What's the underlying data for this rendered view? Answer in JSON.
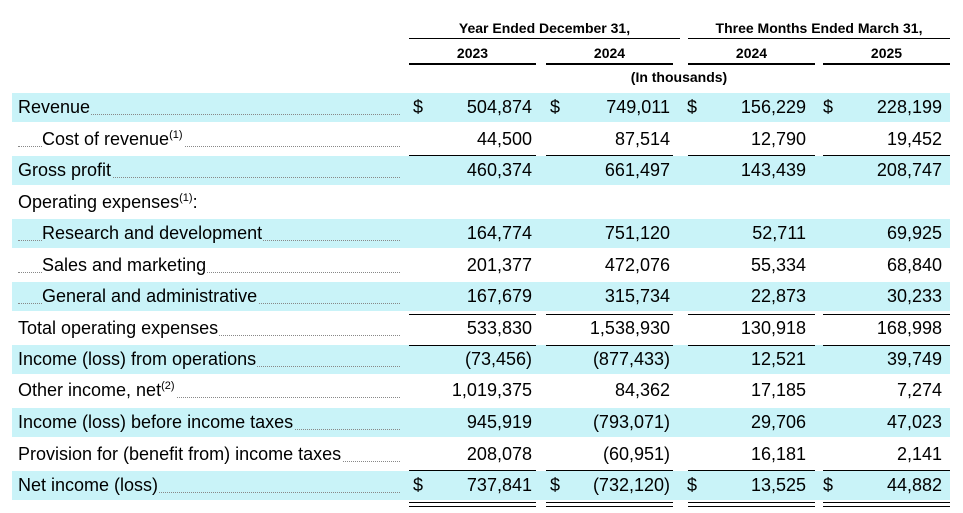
{
  "header": {
    "group1": "Year Ended December 31,",
    "group2": "Three Months Ended March 31,",
    "years": [
      "2023",
      "2024",
      "2024",
      "2025"
    ],
    "units": "(In thousands)"
  },
  "rows": [
    {
      "label": "Revenue",
      "sup": "",
      "v": [
        "504,874",
        "749,011",
        "156,229",
        "228,199"
      ],
      "dollar": true
    },
    {
      "label": "Cost of revenue",
      "sup": "(1)",
      "v": [
        "44,500",
        "87,514",
        "12,790",
        "19,452"
      ],
      "dollar": false
    },
    {
      "label": "Gross profit",
      "sup": "",
      "v": [
        "460,374",
        "661,497",
        "143,439",
        "208,747"
      ],
      "dollar": false
    },
    {
      "label": "Operating expenses",
      "sup": "(1)",
      "suffix": ":",
      "v": [
        "",
        "",
        "",
        ""
      ],
      "dollar": false
    },
    {
      "label": "Research and development",
      "sup": "",
      "v": [
        "164,774",
        "751,120",
        "52,711",
        "69,925"
      ],
      "dollar": false
    },
    {
      "label": "Sales and marketing",
      "sup": "",
      "v": [
        "201,377",
        "472,076",
        "55,334",
        "68,840"
      ],
      "dollar": false
    },
    {
      "label": "General and administrative",
      "sup": "",
      "v": [
        "167,679",
        "315,734",
        "22,873",
        "30,233"
      ],
      "dollar": false
    },
    {
      "label": "Total operating expenses",
      "sup": "",
      "v": [
        "533,830",
        "1,538,930",
        "130,918",
        "168,998"
      ],
      "dollar": false
    },
    {
      "label": "Income (loss) from operations",
      "sup": "",
      "v": [
        "(73,456)",
        "(877,433)",
        "12,521",
        "39,749"
      ],
      "dollar": false
    },
    {
      "label": "Other income, net",
      "sup": "(2)",
      "v": [
        "1,019,375",
        "84,362",
        "17,185",
        "7,274"
      ],
      "dollar": false
    },
    {
      "label": "Income (loss) before income taxes",
      "sup": "",
      "v": [
        "945,919",
        "(793,071)",
        "29,706",
        "47,023"
      ],
      "dollar": false
    },
    {
      "label": "Provision for (benefit from) income taxes",
      "sup": "",
      "v": [
        "208,078",
        "(60,951)",
        "16,181",
        "2,141"
      ],
      "dollar": false
    },
    {
      "label": "Net income (loss)",
      "sup": "",
      "v": [
        "737,841",
        "(732,120)",
        "13,525",
        "44,882"
      ],
      "dollar": true
    }
  ],
  "currency_symbol": "$",
  "colors": {
    "shade": "#c9f3f8"
  }
}
